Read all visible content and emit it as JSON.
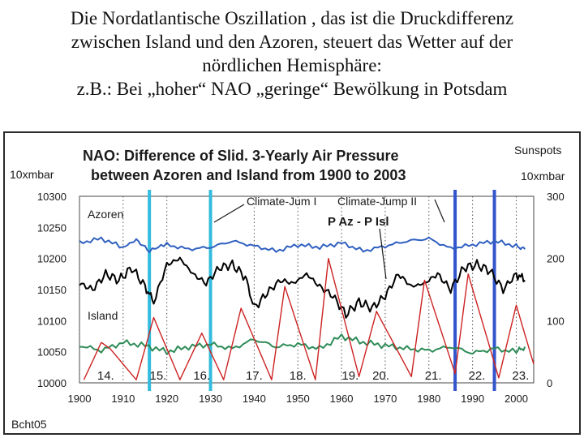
{
  "caption": {
    "lines": [
      "Die Nordatlantische Oszillation , das ist die Druckdifferenz",
      "zwischen Island und den Azoren, steuert das Wetter auf der",
      "nördlichen Hemisphäre:",
      "z.B.: Bei „hoher“ NAO „geringe“ Bewölkung in Potsdam"
    ]
  },
  "chart_data": {
    "type": "line",
    "title_line1": "NAO: Difference of Slid. 3-Yearly Air Pressure",
    "title_line2": "between Azoren and Island from 1900 to 2003",
    "left_axis_label": "10xmbar",
    "right_axis_label_top": "Sunspots",
    "right_axis_label_bottom": "10xmbar",
    "xlim": [
      1900,
      2004
    ],
    "ylim_left": [
      10000,
      10300
    ],
    "ylim_right": [
      0,
      300
    ],
    "x_ticks": [
      1900,
      1910,
      1920,
      1930,
      1940,
      1950,
      1960,
      1970,
      1980,
      1990,
      2000
    ],
    "y_ticks_left": [
      10000,
      10050,
      10100,
      10150,
      10200,
      10250,
      10300
    ],
    "y_ticks_right": [
      0,
      100,
      200,
      300
    ],
    "grid": "vertical dotted",
    "series": [
      {
        "name": "Azoren",
        "color": "#3060c0",
        "axis": "left",
        "x": [
          1900,
          1905,
          1910,
          1913,
          1916,
          1920,
          1925,
          1930,
          1935,
          1940,
          1945,
          1950,
          1955,
          1960,
          1965,
          1970,
          1975,
          1980,
          1985,
          1990,
          1995,
          2000,
          2002
        ],
        "values": [
          10225,
          10232,
          10218,
          10230,
          10212,
          10222,
          10215,
          10218,
          10228,
          10220,
          10212,
          10222,
          10218,
          10225,
          10212,
          10220,
          10228,
          10232,
          10216,
          10222,
          10228,
          10220,
          10215
        ]
      },
      {
        "name": "P Az - P Isl",
        "color": "#000000",
        "axis": "left",
        "x": [
          1900,
          1903,
          1906,
          1909,
          1912,
          1915,
          1917,
          1920,
          1923,
          1926,
          1929,
          1932,
          1935,
          1938,
          1940,
          1943,
          1946,
          1949,
          1952,
          1955,
          1958,
          1961,
          1964,
          1967,
          1970,
          1973,
          1976,
          1979,
          1982,
          1985,
          1988,
          1991,
          1994,
          1997,
          2000,
          2002
        ],
        "values": [
          10160,
          10150,
          10175,
          10165,
          10185,
          10155,
          10130,
          10190,
          10200,
          10175,
          10160,
          10185,
          10190,
          10170,
          10120,
          10145,
          10165,
          10160,
          10175,
          10155,
          10140,
          10110,
          10130,
          10120,
          10140,
          10175,
          10155,
          10160,
          10175,
          10150,
          10185,
          10190,
          10180,
          10150,
          10175,
          10165
        ]
      },
      {
        "name": "Island",
        "color": "#2e8b57",
        "axis": "left",
        "x": [
          1900,
          1905,
          1910,
          1915,
          1920,
          1925,
          1930,
          1935,
          1940,
          1945,
          1950,
          1955,
          1960,
          1965,
          1970,
          1975,
          1980,
          1985,
          1990,
          1995,
          2000,
          2002
        ],
        "values": [
          10060,
          10052,
          10065,
          10060,
          10050,
          10058,
          10062,
          10055,
          10070,
          10058,
          10062,
          10055,
          10075,
          10065,
          10060,
          10055,
          10052,
          10058,
          10048,
          10055,
          10050,
          10058
        ]
      },
      {
        "name": "Sunspots",
        "color": "#cc2222",
        "axis": "right",
        "x": [
          1901,
          1905,
          1907,
          1913,
          1917,
          1923,
          1928,
          1933,
          1937,
          1944,
          1947,
          1954,
          1957,
          1964,
          1968,
          1976,
          1979,
          1986,
          1989,
          1996,
          2000,
          2004
        ],
        "values": [
          5,
          65,
          55,
          5,
          105,
          5,
          80,
          5,
          120,
          5,
          155,
          5,
          200,
          10,
          115,
          10,
          165,
          15,
          175,
          8,
          125,
          30
        ]
      }
    ],
    "vertical_markers": [
      {
        "x": 1916,
        "color": "#33bbdd"
      },
      {
        "x": 1930,
        "color": "#33bbdd"
      },
      {
        "x": 1986,
        "color": "#3355cc"
      },
      {
        "x": 1995,
        "color": "#3355cc"
      }
    ],
    "cycle_labels": [
      {
        "label": "14.",
        "x": 1906
      },
      {
        "label": "15.",
        "x": 1918
      },
      {
        "label": "16.",
        "x": 1928
      },
      {
        "label": "17.",
        "x": 1940
      },
      {
        "label": "18.",
        "x": 1950
      },
      {
        "label": "19.",
        "x": 1962
      },
      {
        "label": "20.",
        "x": 1969
      },
      {
        "label": "21.",
        "x": 1981
      },
      {
        "label": "22.",
        "x": 1991
      },
      {
        "label": "23.",
        "x": 2001
      }
    ],
    "annotations": [
      {
        "text": "Climate-Jum I"
      },
      {
        "text": "Climate-Jump II"
      },
      {
        "text": "Azoren"
      },
      {
        "text": "Island"
      },
      {
        "text": "P Az - P Isl"
      }
    ],
    "footer": "Bcht05"
  }
}
